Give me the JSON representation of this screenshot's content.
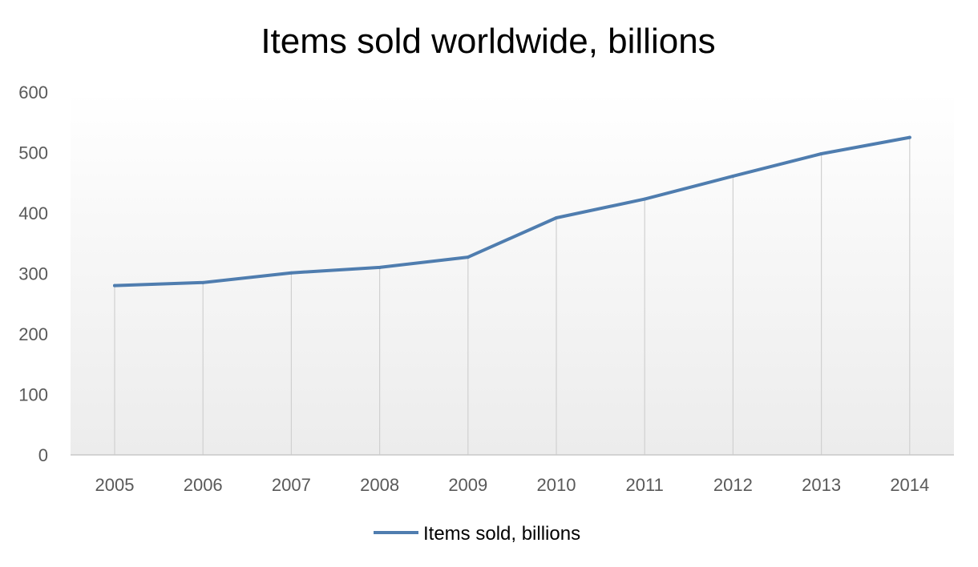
{
  "chart_data": {
    "type": "line",
    "title": "Items sold worldwide, billions",
    "xlabel": "",
    "ylabel": "",
    "categories": [
      "2005",
      "2006",
      "2007",
      "2008",
      "2009",
      "2010",
      "2011",
      "2012",
      "2013",
      "2014"
    ],
    "series": [
      {
        "name": "Items sold, billions",
        "values": [
          280,
          285,
          301,
          310,
          327,
          392,
          423,
          461,
          498,
          525
        ],
        "color": "#4f7daf"
      }
    ],
    "ylim": [
      0,
      600
    ],
    "yticks": [
      "0",
      "100",
      "200",
      "300",
      "400",
      "500",
      "600"
    ],
    "grid": "vertical drop lines",
    "legend": "bottom-center"
  }
}
